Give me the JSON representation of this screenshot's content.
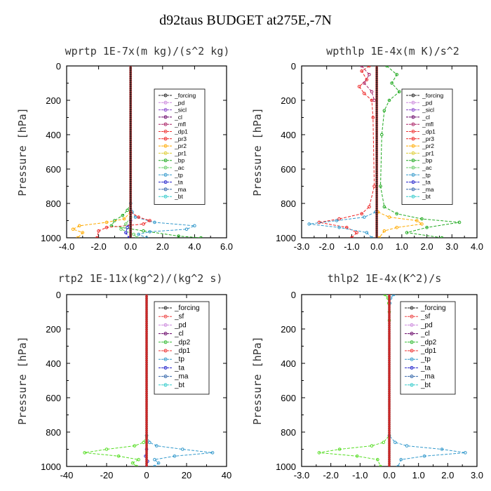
{
  "title": "d92taus  BUDGET at275E,-7N",
  "chart_data": [
    {
      "type": "line",
      "title": "wprtp  1E-7x(m kg)/(s^2 kg)",
      "ylabel": "Pressure [hPa]",
      "xlim": [
        -4,
        6
      ],
      "ylim": [
        1000,
        0
      ],
      "xticks": [
        -4,
        -2,
        0,
        2,
        4,
        6
      ],
      "xtick_labels": [
        "-4.0",
        "-2.0",
        "0.0",
        "2.0",
        "4.0",
        "6.0"
      ],
      "yticks": [
        0,
        200,
        400,
        600,
        800,
        1000
      ],
      "legend": [
        "_forcing",
        "_pd",
        "_sicl",
        "_cl",
        "_mfl",
        "_dp1",
        "_pr3",
        "_pr2",
        "_pr1",
        "_bp",
        "_ac",
        "_tp",
        "_ta",
        "_ma",
        "_bt"
      ],
      "series": [
        {
          "name": "_bp",
          "color": "#22aa22",
          "p": [
            800,
            840,
            870,
            900,
            930,
            960,
            990,
            1000
          ],
          "x": [
            0,
            -0.2,
            -0.5,
            -1.0,
            -1.2,
            0.8,
            3.0,
            4.4
          ]
        },
        {
          "name": "_tp",
          "color": "#3399cc",
          "p": [
            800,
            850,
            880,
            910,
            930,
            950,
            965,
            980,
            1000
          ],
          "x": [
            0,
            0.1,
            0.3,
            1.5,
            4.0,
            3.5,
            1.2,
            0.5,
            1.0
          ]
        },
        {
          "name": "_pr2",
          "color": "#ffaa00",
          "p": [
            850,
            890,
            910,
            930,
            950,
            970,
            1000
          ],
          "x": [
            0,
            -0.4,
            -1.5,
            -3.2,
            -3.6,
            -3.0,
            -3.3
          ]
        },
        {
          "name": "_pr3",
          "color": "#ee2222",
          "p": [
            850,
            880,
            900,
            920,
            940,
            960,
            1000
          ],
          "x": [
            0,
            0.5,
            1.2,
            0.8,
            -1.5,
            -2.0,
            -2.1
          ]
        },
        {
          "name": "_ac",
          "color": "#66cc66",
          "p": [
            880,
            920,
            950,
            980,
            1000
          ],
          "x": [
            0,
            -0.3,
            -0.6,
            0.2,
            0.4
          ]
        },
        {
          "name": "_ta",
          "color": "#2222cc",
          "p": [
            900,
            940,
            970,
            1000
          ],
          "x": [
            0,
            -0.2,
            -0.3,
            -0.1
          ]
        },
        {
          "name": "_forcing",
          "color": "#222222",
          "p": [
            0,
            1000
          ],
          "x": [
            0,
            0
          ]
        }
      ]
    },
    {
      "type": "line",
      "title": "wpthlp  1E-4x(m K)/s^2",
      "ylabel": "Pressure [hPa]",
      "xlim": [
        -3,
        4
      ],
      "ylim": [
        1000,
        0
      ],
      "xticks": [
        -3,
        -2,
        -1,
        0,
        1,
        2,
        3,
        4
      ],
      "xtick_labels": [
        "-3.0",
        "-2.0",
        "-1.0",
        "0.0",
        "1.0",
        "2.0",
        "3.0",
        "4.0"
      ],
      "yticks": [
        0,
        200,
        400,
        600,
        800,
        1000
      ],
      "legend": [
        "_forcing",
        "_pd",
        "_sicl",
        "_cl",
        "_mfl",
        "_dp1",
        "_pr3",
        "_pr2",
        "_pr1",
        "_bp",
        "_ac",
        "_tp",
        "_ta",
        "_ma",
        "_bt"
      ],
      "series": [
        {
          "name": "_bp",
          "color": "#22aa22",
          "p": [
            0,
            50,
            100,
            150,
            200,
            260,
            400,
            700,
            820,
            860,
            890,
            910,
            940,
            970,
            1000
          ],
          "x": [
            0.4,
            0.8,
            0.6,
            0.9,
            0.5,
            0.3,
            0.2,
            0.15,
            0.3,
            0.8,
            1.8,
            3.3,
            2.0,
            1.2,
            2.6
          ]
        },
        {
          "name": "_pr3",
          "color": "#ee2222",
          "p": [
            0,
            30,
            80,
            120,
            160,
            200,
            300,
            700,
            820,
            860,
            890,
            910,
            940,
            970,
            1000
          ],
          "x": [
            -0.3,
            -0.6,
            -0.4,
            -0.7,
            -0.5,
            -0.2,
            -0.15,
            -0.1,
            -0.3,
            -0.6,
            -1.5,
            -2.3,
            -1.2,
            -0.8,
            -1.0
          ]
        },
        {
          "name": "_pr2",
          "color": "#ffaa00",
          "p": [
            850,
            880,
            900,
            920,
            940,
            960,
            1000
          ],
          "x": [
            0.05,
            0.5,
            1.6,
            1.8,
            0.8,
            0.3,
            0.1
          ]
        },
        {
          "name": "_tp",
          "color": "#3399cc",
          "p": [
            850,
            880,
            900,
            920,
            940,
            970,
            1000
          ],
          "x": [
            -0.05,
            -0.5,
            -1.6,
            -2.7,
            -1.5,
            -0.4,
            -0.2
          ]
        },
        {
          "name": "_mfl",
          "color": "#aa2266",
          "p": [
            0,
            50,
            100,
            150,
            200
          ],
          "x": [
            -0.6,
            -0.3,
            -0.5,
            -0.2,
            -0.1
          ]
        },
        {
          "name": "_forcing",
          "color": "#222222",
          "p": [
            0,
            1000
          ],
          "x": [
            0,
            0
          ]
        }
      ]
    },
    {
      "type": "line",
      "title": "rtp2  1E-11x(kg^2)/(kg^2 s)",
      "ylabel": "Pressure [hPa]",
      "xlim": [
        -40,
        40
      ],
      "ylim": [
        1000,
        0
      ],
      "xticks": [
        -40,
        -20,
        0,
        20,
        40
      ],
      "xtick_labels": [
        "-40",
        "-20",
        "0",
        "20",
        "40"
      ],
      "yticks": [
        0,
        200,
        400,
        600,
        800,
        1000
      ],
      "legend": [
        "_forcing",
        "_sf",
        "_pd",
        "_cl",
        "_dp2",
        "_dp1",
        "_tp",
        "_ta",
        "_ma",
        "_bt"
      ],
      "series": [
        {
          "name": "_dp1",
          "color": "#55dd22",
          "p": [
            820,
            860,
            880,
            900,
            920,
            940,
            960,
            980,
            1000
          ],
          "x": [
            0,
            -1.5,
            -6,
            -20,
            -31,
            -14,
            -4,
            -7,
            -5
          ]
        },
        {
          "name": "_tp",
          "color": "#3399cc",
          "p": [
            820,
            860,
            880,
            900,
            920,
            940,
            960,
            980,
            1000
          ],
          "x": [
            0,
            1.5,
            5,
            18,
            33,
            14,
            4,
            6,
            4
          ]
        },
        {
          "name": "_ta",
          "color": "#2222cc",
          "p": [
            900,
            940,
            970,
            1000
          ],
          "x": [
            0,
            -0.5,
            0.5,
            0
          ]
        },
        {
          "name": "_forcing",
          "color": "#dd2222",
          "p": [
            0,
            1000
          ],
          "x": [
            0,
            0
          ]
        }
      ]
    },
    {
      "type": "line",
      "title": "thlp2  1E-4x(K^2)/s",
      "ylabel": "Pressure [hPa]",
      "xlim": [
        -3,
        3
      ],
      "ylim": [
        1000,
        0
      ],
      "xticks": [
        -3,
        -2,
        -1,
        0,
        1,
        2,
        3
      ],
      "xtick_labels": [
        "-3.0",
        "-2.0",
        "-1.0",
        "0.0",
        "1.0",
        "2.0",
        "3.0"
      ],
      "yticks": [
        0,
        200,
        400,
        600,
        800,
        1000
      ],
      "legend": [
        "_forcing",
        "_sf",
        "_pd",
        "_cl",
        "_dp2",
        "_dp1",
        "_tp",
        "_ta",
        "_ma",
        "_bt"
      ],
      "series": [
        {
          "name": "_dp1",
          "color": "#55dd22",
          "p": [
            0,
            20,
            50,
            100,
            150,
            820,
            860,
            880,
            900,
            920,
            940,
            960,
            1000
          ],
          "x": [
            -0.15,
            -0.05,
            -0.02,
            0,
            0,
            0,
            -0.2,
            -0.6,
            -1.7,
            -2.4,
            -1.1,
            -0.4,
            -0.3
          ]
        },
        {
          "name": "_tp",
          "color": "#3399cc",
          "p": [
            0,
            20,
            50,
            820,
            860,
            880,
            900,
            920,
            940,
            960,
            1000
          ],
          "x": [
            0.15,
            0.05,
            0.02,
            0,
            0.2,
            0.6,
            1.8,
            2.6,
            1.2,
            0.4,
            0.3
          ]
        },
        {
          "name": "_forcing",
          "color": "#dd2222",
          "p": [
            0,
            1000
          ],
          "x": [
            0,
            0
          ]
        }
      ]
    }
  ]
}
